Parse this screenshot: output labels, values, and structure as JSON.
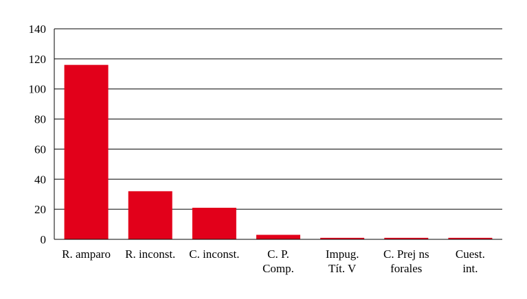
{
  "chart_data": {
    "type": "bar",
    "title": "",
    "xlabel": "",
    "ylabel": "",
    "categories": [
      [
        "R. amparo"
      ],
      [
        "R. inconst."
      ],
      [
        "C. inconst."
      ],
      [
        "C. P.",
        "Comp."
      ],
      [
        "Impug.",
        "Tít. V"
      ],
      [
        "C. Prej ns",
        "forales"
      ],
      [
        "Cuest.",
        "int."
      ]
    ],
    "values": [
      116,
      32,
      21,
      3,
      1,
      1,
      1
    ],
    "ylim": [
      0,
      140
    ],
    "yticks": [
      0,
      20,
      40,
      60,
      80,
      100,
      120,
      140
    ],
    "grid": true,
    "legend": "none",
    "bar_color": "#e2001a"
  }
}
